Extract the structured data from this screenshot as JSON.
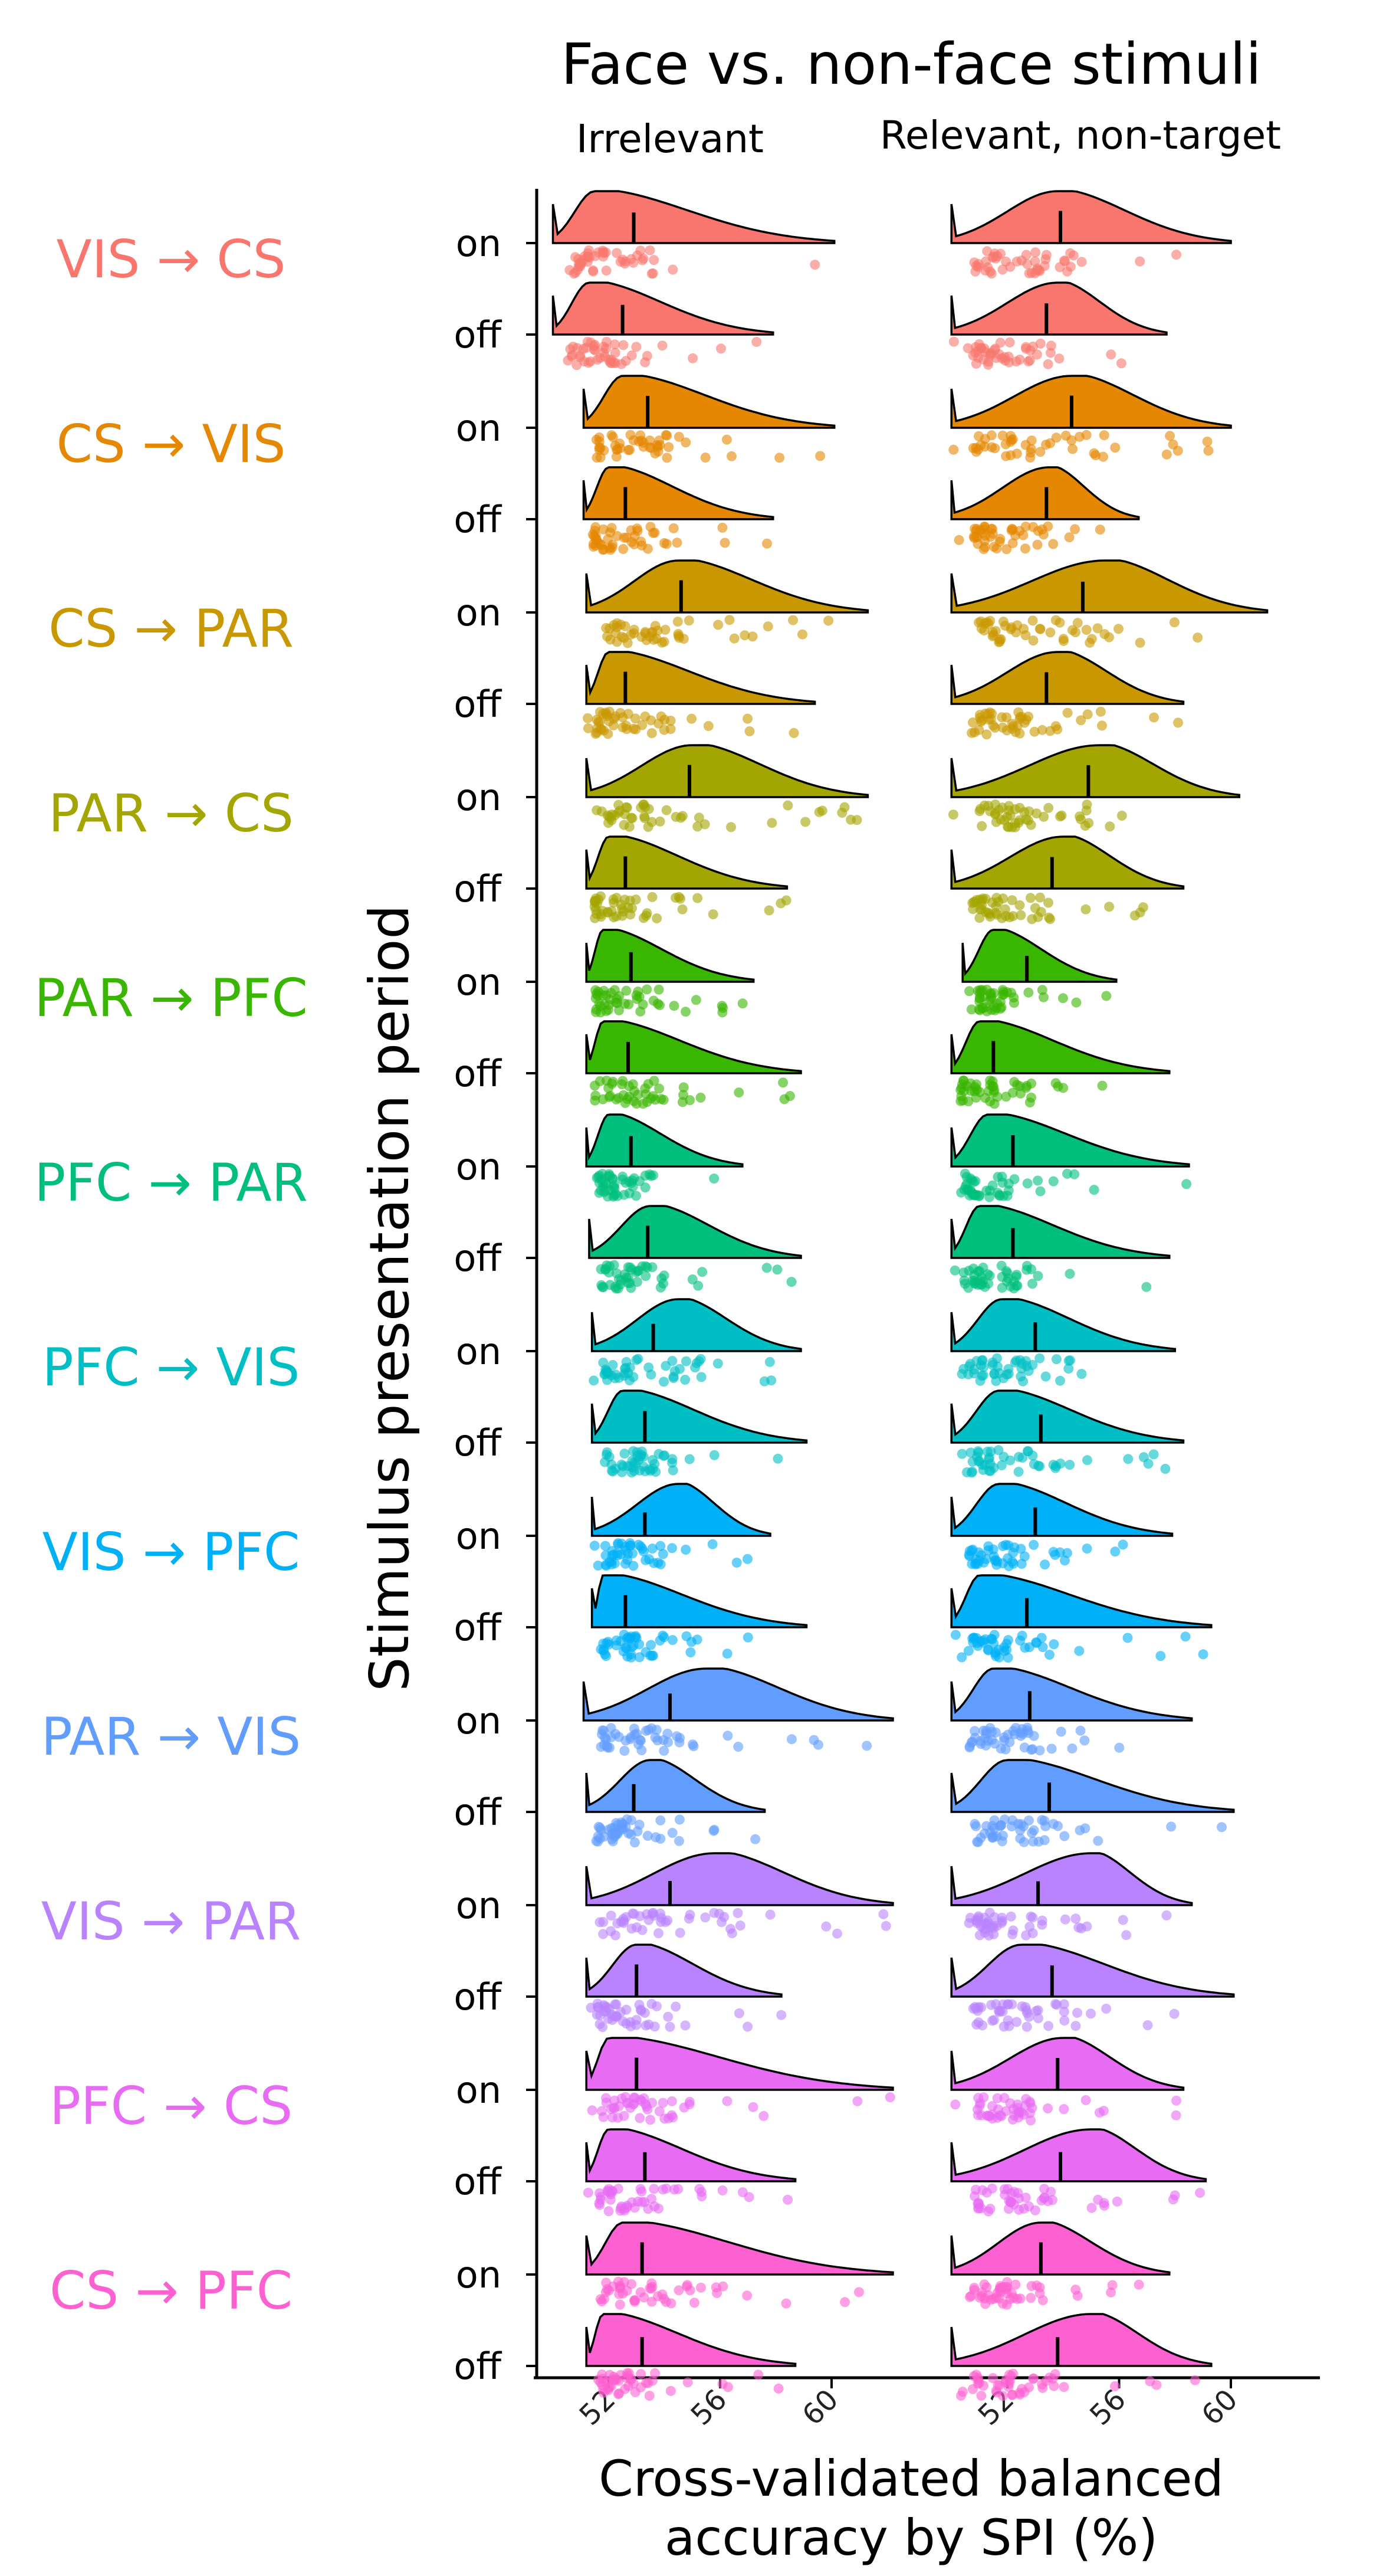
{
  "chart_data": {
    "type": "raincloud",
    "title": "Face vs. non-face stimuli",
    "panels": [
      "Irrelevant",
      "Relevant, non-target"
    ],
    "ylabel": "Stimulus presentation period",
    "xlabel_lines": [
      "Cross-validated balanced",
      "accuracy by SPI (%)"
    ],
    "xticks": [
      52,
      56,
      60
    ],
    "periods": [
      "on",
      "off"
    ],
    "groups": [
      {
        "label": "VIS → CS",
        "color": "#F8766D",
        "irrelevant": {
          "on": {
            "median": 52.9,
            "min": 50.0,
            "max": 60.1,
            "peak": 51.5
          },
          "off": {
            "median": 52.5,
            "min": 50.0,
            "max": 57.9,
            "peak": 51.3
          }
        },
        "relevant": {
          "on": {
            "median": 53.9,
            "min": 50.0,
            "max": 60.0,
            "peak": 53.8
          },
          "off": {
            "median": 53.4,
            "min": 50.0,
            "max": 57.7,
            "peak": 53.8
          }
        }
      },
      {
        "label": "CS → VIS",
        "color": "#E58700",
        "irrelevant": {
          "on": {
            "median": 53.4,
            "min": 51.1,
            "max": 60.1,
            "peak": 52.5
          },
          "off": {
            "median": 52.6,
            "min": 51.1,
            "max": 57.9,
            "peak": 52.0
          }
        },
        "relevant": {
          "on": {
            "median": 54.3,
            "min": 50.0,
            "max": 60.0,
            "peak": 54.3
          },
          "off": {
            "median": 53.4,
            "min": 50.0,
            "max": 56.7,
            "peak": 53.5
          }
        }
      },
      {
        "label": "CS → PAR",
        "color": "#C99800",
        "irrelevant": {
          "on": {
            "median": 54.6,
            "min": 51.2,
            "max": 61.3,
            "peak": 54.5
          },
          "off": {
            "median": 52.6,
            "min": 51.2,
            "max": 59.4,
            "peak": 52.0
          }
        },
        "relevant": {
          "on": {
            "median": 54.7,
            "min": 50.0,
            "max": 61.3,
            "peak": 55.5
          },
          "off": {
            "median": 53.4,
            "min": 50.0,
            "max": 58.3,
            "peak": 53.8
          }
        }
      },
      {
        "label": "PAR → CS",
        "color": "#A3A500",
        "irrelevant": {
          "on": {
            "median": 54.9,
            "min": 51.2,
            "max": 61.3,
            "peak": 55.0
          },
          "off": {
            "median": 52.6,
            "min": 51.2,
            "max": 58.4,
            "peak": 52.0
          }
        },
        "relevant": {
          "on": {
            "median": 54.9,
            "min": 50.0,
            "max": 60.3,
            "peak": 55.3
          },
          "off": {
            "median": 53.6,
            "min": 50.0,
            "max": 58.3,
            "peak": 54.0
          }
        }
      },
      {
        "label": "PAR → PFC",
        "color": "#39B600",
        "irrelevant": {
          "on": {
            "median": 52.8,
            "min": 51.2,
            "max": 57.2,
            "peak": 51.8
          },
          "off": {
            "median": 52.7,
            "min": 51.2,
            "max": 58.9,
            "peak": 51.8
          }
        },
        "relevant": {
          "on": {
            "median": 52.7,
            "min": 50.4,
            "max": 55.9,
            "peak": 51.5
          },
          "off": {
            "median": 51.5,
            "min": 50.0,
            "max": 57.8,
            "peak": 51.0
          }
        }
      },
      {
        "label": "PFC → PAR",
        "color": "#00BF7D",
        "irrelevant": {
          "on": {
            "median": 52.8,
            "min": 51.2,
            "max": 56.8,
            "peak": 52.0
          },
          "off": {
            "median": 53.4,
            "min": 51.3,
            "max": 58.9,
            "peak": 53.5
          }
        },
        "relevant": {
          "on": {
            "median": 52.2,
            "min": 50.0,
            "max": 58.5,
            "peak": 51.3
          },
          "off": {
            "median": 52.2,
            "min": 50.0,
            "max": 57.8,
            "peak": 51.0
          }
        }
      },
      {
        "label": "PFC → VIS",
        "color": "#00BFC4",
        "irrelevant": {
          "on": {
            "median": 53.6,
            "min": 51.4,
            "max": 58.9,
            "peak": 54.5
          },
          "off": {
            "median": 53.3,
            "min": 51.4,
            "max": 59.1,
            "peak": 52.5
          }
        },
        "relevant": {
          "on": {
            "median": 53.0,
            "min": 50.0,
            "max": 58.0,
            "peak": 51.8
          },
          "off": {
            "median": 53.2,
            "min": 50.0,
            "max": 58.3,
            "peak": 51.7
          }
        }
      },
      {
        "label": "VIS → PFC",
        "color": "#00B0F6",
        "irrelevant": {
          "on": {
            "median": 53.3,
            "min": 51.4,
            "max": 57.8,
            "peak": 54.5
          },
          "off": {
            "median": 52.6,
            "min": 51.4,
            "max": 59.1,
            "peak": 51.8
          }
        },
        "relevant": {
          "on": {
            "median": 53.0,
            "min": 50.0,
            "max": 57.9,
            "peak": 51.7
          },
          "off": {
            "median": 52.7,
            "min": 50.0,
            "max": 59.3,
            "peak": 51.0
          }
        }
      },
      {
        "label": "PAR → VIS",
        "color": "#619CFF",
        "irrelevant": {
          "on": {
            "median": 54.2,
            "min": 51.1,
            "max": 62.2,
            "peak": 55.5
          },
          "off": {
            "median": 52.9,
            "min": 51.2,
            "max": 57.6,
            "peak": 53.5
          }
        },
        "relevant": {
          "on": {
            "median": 52.8,
            "min": 50.0,
            "max": 58.6,
            "peak": 51.5
          },
          "off": {
            "median": 53.5,
            "min": 50.0,
            "max": 60.1,
            "peak": 52.0
          }
        }
      },
      {
        "label": "VIS → PAR",
        "color": "#B983FF",
        "irrelevant": {
          "on": {
            "median": 54.2,
            "min": 51.2,
            "max": 62.2,
            "peak": 55.8
          },
          "off": {
            "median": 53.0,
            "min": 51.2,
            "max": 58.2,
            "peak": 53.0
          }
        },
        "relevant": {
          "on": {
            "median": 53.1,
            "min": 50.0,
            "max": 58.6,
            "peak": 55.0
          },
          "off": {
            "median": 53.6,
            "min": 50.0,
            "max": 60.1,
            "peak": 52.5
          }
        }
      },
      {
        "label": "PFC → CS",
        "color": "#E76BF3",
        "irrelevant": {
          "on": {
            "median": 53.0,
            "min": 51.2,
            "max": 62.2,
            "peak": 52.0
          },
          "off": {
            "median": 53.3,
            "min": 51.2,
            "max": 58.7,
            "peak": 52.0
          }
        },
        "relevant": {
          "on": {
            "median": 53.8,
            "min": 50.0,
            "max": 58.3,
            "peak": 54.0
          },
          "off": {
            "median": 53.9,
            "min": 50.0,
            "max": 59.1,
            "peak": 55.0
          }
        }
      },
      {
        "label": "CS → PFC",
        "color": "#FD61D1",
        "irrelevant": {
          "on": {
            "median": 53.2,
            "min": 51.2,
            "max": 62.2,
            "peak": 52.5
          },
          "off": {
            "median": 53.2,
            "min": 51.2,
            "max": 58.7,
            "peak": 51.8
          }
        },
        "relevant": {
          "on": {
            "median": 53.2,
            "min": 50.0,
            "max": 57.8,
            "peak": 53.2
          },
          "off": {
            "median": 53.8,
            "min": 50.0,
            "max": 59.3,
            "peak": 55.0
          }
        }
      }
    ]
  }
}
